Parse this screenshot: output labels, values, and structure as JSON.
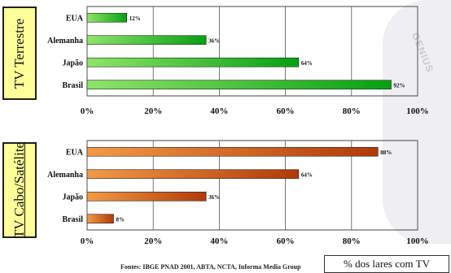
{
  "chart_data": [
    {
      "type": "bar",
      "orientation": "horizontal",
      "panel_label": "TV Terrestre",
      "categories": [
        "EUA",
        "Alemanha",
        "Japão",
        "Brasil"
      ],
      "values": [
        12,
        36,
        64,
        92
      ],
      "value_labels": [
        "12%",
        "36%",
        "64%",
        "92%"
      ],
      "xlim": [
        0,
        100
      ],
      "x_ticks": [
        "0%",
        "20%",
        "40%",
        "60%",
        "80%",
        "100%"
      ],
      "grid": true,
      "color": "#10b010"
    },
    {
      "type": "bar",
      "orientation": "horizontal",
      "panel_label": "TV Cabo/Satélite",
      "categories": [
        "EUA",
        "Alemanha",
        "Japão",
        "Brasil"
      ],
      "values": [
        88,
        64,
        36,
        8
      ],
      "value_labels": [
        "88%",
        "64%",
        "36%",
        "8%"
      ],
      "xlim": [
        0,
        100
      ],
      "x_ticks": [
        "0%",
        "20%",
        "40%",
        "60%",
        "80%",
        "100%"
      ],
      "grid": true,
      "color": "#d05a10"
    }
  ],
  "legend_text": "% dos lares com TV",
  "source": "Fontes: IBGE PNAD 2001, ABTA, NCTA, Informa Media Group",
  "watermark_text": "GENIUS"
}
